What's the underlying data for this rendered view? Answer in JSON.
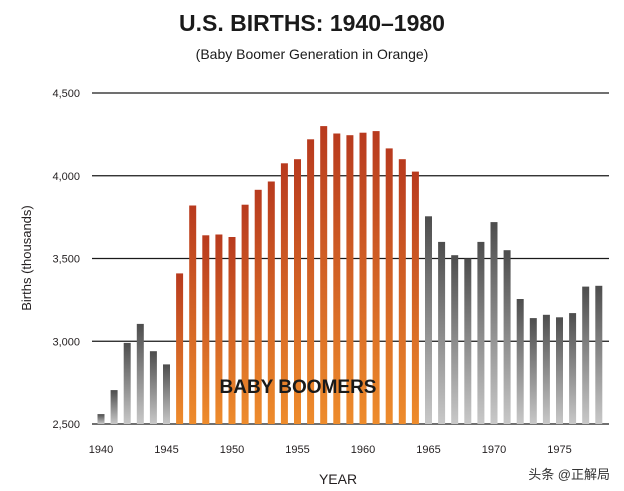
{
  "title": "U.S. BIRTHS: 1940–1980",
  "subtitle": "(Baby Boomer Generation in Orange)",
  "watermark": "头条 @正解局",
  "colors": {
    "boomer_top": "#b83a1e",
    "boomer_bottom": "#ee8c2c",
    "other_top": "#4d4d4d",
    "other_bottom": "#c8c8c8",
    "gridline": "#1a1a1a"
  },
  "chart_data": {
    "type": "bar",
    "title": "U.S. BIRTHS: 1940–1980",
    "subtitle": "(Baby Boomer Generation in Orange)",
    "xlabel": "YEAR",
    "ylabel": "Births (thousands)",
    "ylim": [
      2500,
      4500
    ],
    "yticks": [
      "2,500",
      "3,000",
      "3,500",
      "4,000",
      "4,500"
    ],
    "xticks": [
      "1940",
      "1945",
      "1950",
      "1955",
      "1960",
      "1965",
      "1970",
      "1975"
    ],
    "grid": true,
    "annotation": "BABY BOOMERS",
    "boomer_years": [
      1946,
      1964
    ],
    "categories": [
      1940,
      1941,
      1942,
      1943,
      1944,
      1945,
      1946,
      1947,
      1948,
      1949,
      1950,
      1951,
      1952,
      1953,
      1954,
      1955,
      1956,
      1957,
      1958,
      1959,
      1960,
      1961,
      1962,
      1963,
      1964,
      1965,
      1966,
      1967,
      1968,
      1969,
      1970,
      1971,
      1972,
      1973,
      1974,
      1975,
      1976,
      1977,
      1978
    ],
    "values": [
      2560,
      2705,
      2990,
      3105,
      2940,
      2860,
      3410,
      3820,
      3640,
      3645,
      3630,
      3825,
      3915,
      3965,
      4075,
      4100,
      4220,
      4300,
      4255,
      4245,
      4260,
      4270,
      4165,
      4100,
      4025,
      3755,
      3600,
      3520,
      3500,
      3600,
      3720,
      3550,
      3255,
      3140,
      3160,
      3145,
      3170,
      3330,
      3335
    ]
  }
}
